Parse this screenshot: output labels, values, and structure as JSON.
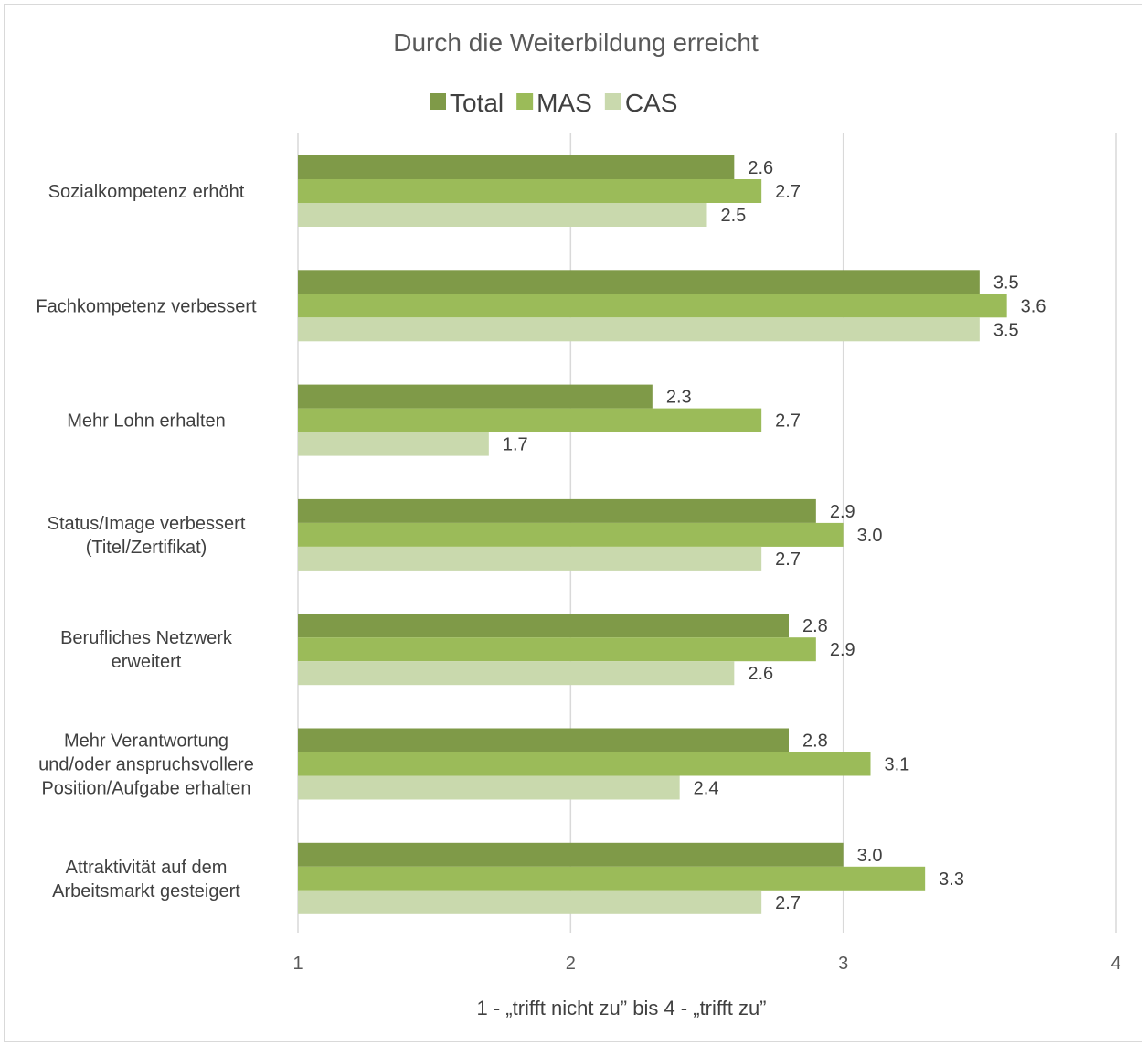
{
  "chart_data": {
    "type": "bar",
    "orientation": "horizontal",
    "title": "Durch die Weiterbildung erreicht",
    "xlabel": "1 - „trifft nicht zu” bis 4 - „trifft zu”",
    "ylabel": "",
    "xlim": [
      1,
      4
    ],
    "xticks": [
      "1",
      "2",
      "3",
      "4"
    ],
    "grid": true,
    "legend_position": "top",
    "categories": [
      [
        "Sozialkompetenz erhöht"
      ],
      [
        "Fachkompetenz verbessert"
      ],
      [
        "Mehr Lohn erhalten"
      ],
      [
        "Status/Image verbessert",
        "(Titel/Zertifikat)"
      ],
      [
        "Berufliches Netzwerk",
        "erweitert"
      ],
      [
        "Mehr Verantwortung",
        "und/oder anspruchsvollere",
        "Position/Aufgabe erhalten"
      ],
      [
        "Attraktivität auf dem",
        "Arbeitsmarkt gesteigert"
      ]
    ],
    "series": [
      {
        "name": "Total",
        "color": "#7f9a48",
        "values": [
          2.6,
          3.5,
          2.3,
          2.9,
          2.8,
          2.8,
          3.0
        ],
        "labels": [
          "2.6",
          "3.5",
          "2.3",
          "2.9",
          "2.8",
          "2.8",
          "3.0"
        ]
      },
      {
        "name": "MAS",
        "color": "#9bbb59",
        "values": [
          2.7,
          3.6,
          2.7,
          3.0,
          2.9,
          3.1,
          3.3
        ],
        "labels": [
          "2.7",
          "3.6",
          "2.7",
          "3.0",
          "2.9",
          "3.1",
          "3.3"
        ]
      },
      {
        "name": "CAS",
        "color": "#c9d9ad",
        "values": [
          2.5,
          3.5,
          1.7,
          2.7,
          2.6,
          2.4,
          2.7
        ],
        "labels": [
          "2.5",
          "3.5",
          "1.7",
          "2.7",
          "2.6",
          "2.4",
          "2.7"
        ]
      }
    ]
  }
}
